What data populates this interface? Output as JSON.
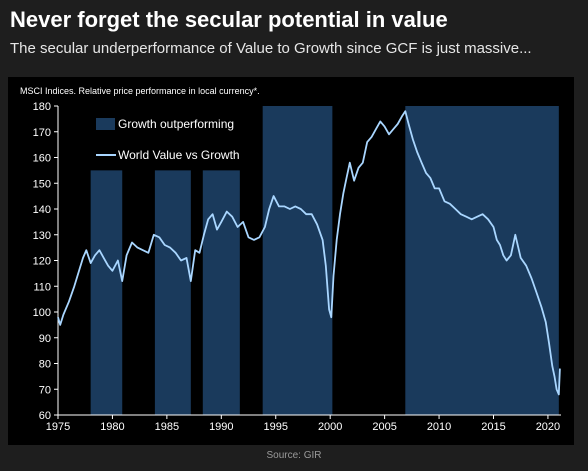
{
  "headline": "Never forget the secular potential in value",
  "subheadline": "The secular underperformance of Value to Growth since GCF is just massive...",
  "source": "Source: GIR",
  "colors": {
    "background": "#1e1e1e",
    "plot_background": "#000000",
    "shade": "#1a3a5c",
    "line": "#a9d6ff"
  },
  "chart_data": {
    "type": "line",
    "title": "MSCI Indices. Relative price performance in local currency*.",
    "xlim": [
      1975,
      2021.2
    ],
    "ylim": [
      60,
      180
    ],
    "x_ticks": [
      1975,
      1980,
      1985,
      1990,
      1995,
      2000,
      2005,
      2010,
      2015,
      2020
    ],
    "y_ticks": [
      60,
      70,
      80,
      90,
      100,
      110,
      120,
      130,
      140,
      150,
      160,
      170,
      180
    ],
    "legend": {
      "position": "top-left",
      "entries": [
        "Growth outperforming",
        "World Value vs Growth"
      ]
    },
    "shaded_periods": {
      "name": "Growth outperforming",
      "periods": [
        {
          "start": 1978.0,
          "end": 1980.9,
          "top": 155
        },
        {
          "start": 1983.9,
          "end": 1987.2,
          "top": 155
        },
        {
          "start": 1988.3,
          "end": 1991.7,
          "top": 155
        },
        {
          "start": 1993.8,
          "end": 2000.2,
          "top": 180
        },
        {
          "start": 2006.9,
          "end": 2021.0,
          "top": 180
        }
      ]
    },
    "series": [
      {
        "name": "World Value vs Growth",
        "x": [
          1975.0,
          1975.2,
          1975.5,
          1976.0,
          1976.5,
          1977.0,
          1977.3,
          1977.6,
          1978.0,
          1978.4,
          1978.8,
          1979.2,
          1979.6,
          1980.0,
          1980.5,
          1980.9,
          1981.3,
          1981.8,
          1982.3,
          1982.8,
          1983.3,
          1983.8,
          1984.3,
          1984.8,
          1985.3,
          1985.8,
          1986.3,
          1986.8,
          1987.2,
          1987.6,
          1988.0,
          1988.4,
          1988.8,
          1989.2,
          1989.6,
          1990.0,
          1990.5,
          1991.0,
          1991.5,
          1992.0,
          1992.5,
          1993.0,
          1993.5,
          1994.0,
          1994.4,
          1994.8,
          1995.3,
          1995.8,
          1996.3,
          1996.8,
          1997.3,
          1997.8,
          1998.3,
          1998.8,
          1999.3,
          1999.6,
          1999.9,
          2000.1,
          2000.3,
          2000.6,
          2000.9,
          2001.2,
          2001.5,
          2001.8,
          2002.2,
          2002.6,
          2003.0,
          2003.4,
          2003.8,
          2004.2,
          2004.6,
          2005.0,
          2005.4,
          2005.8,
          2006.2,
          2006.6,
          2006.9,
          2007.2,
          2007.6,
          2008.0,
          2008.4,
          2008.8,
          2009.2,
          2009.6,
          2010.0,
          2010.5,
          2011.0,
          2011.5,
          2012.0,
          2012.5,
          2013.0,
          2013.5,
          2014.0,
          2014.5,
          2015.0,
          2015.3,
          2015.6,
          2015.9,
          2016.2,
          2016.6,
          2017.0,
          2017.5,
          2018.0,
          2018.5,
          2019.0,
          2019.4,
          2019.8,
          2020.1,
          2020.4,
          2020.6,
          2020.8,
          2021.0,
          2021.1
        ],
        "values": [
          98,
          95,
          99,
          104,
          110,
          117,
          121,
          124,
          119,
          122,
          124,
          121,
          118,
          116,
          120,
          112,
          122,
          127,
          125,
          124,
          123,
          130,
          129,
          126,
          125,
          123,
          120,
          121,
          112,
          124,
          123,
          130,
          136,
          138,
          132,
          135,
          139,
          137,
          133,
          135,
          129,
          128,
          129,
          133,
          140,
          145,
          141,
          141,
          140,
          141,
          140,
          138,
          138,
          134,
          128,
          118,
          101,
          98,
          114,
          128,
          138,
          146,
          152,
          158,
          151,
          156,
          158,
          166,
          168,
          171,
          174,
          172,
          169,
          171,
          173,
          176,
          178,
          173,
          167,
          162,
          158,
          154,
          152,
          148,
          148,
          143,
          142,
          140,
          138,
          137,
          136,
          137,
          138,
          136,
          133,
          128,
          126,
          122,
          120,
          122,
          130,
          121,
          118,
          113,
          107,
          102,
          96,
          88,
          79,
          75,
          70,
          68,
          78
        ]
      }
    ]
  }
}
